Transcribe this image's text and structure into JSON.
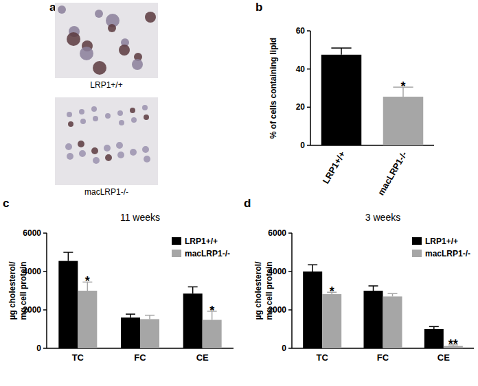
{
  "image_panel": {
    "panel_label": "a",
    "captions": [
      "LRP1+/+",
      "macLRP1-/-"
    ]
  },
  "chart_data": [
    {
      "type": "bar",
      "panel_label": "b",
      "y_label": [
        "% of cells containing lipid"
      ],
      "categories": [
        "LRP1+/+",
        "macLRP1-/-"
      ],
      "values": [
        47.5,
        25.5
      ],
      "errors": [
        3.5,
        5
      ],
      "significance": [
        null,
        "*"
      ],
      "colors": [
        "#000000",
        "#a6a6a6"
      ],
      "ylim": [
        0,
        60
      ],
      "yticks": [
        0,
        20,
        40,
        60
      ]
    },
    {
      "type": "bar",
      "panel_label": "c",
      "title": "11 weeks",
      "y_label": [
        "µg cholesterol/",
        "mg cell protein"
      ],
      "categories": [
        "TC",
        "FC",
        "CE"
      ],
      "series": [
        {
          "name": "LRP1+/+",
          "color": "#000000",
          "values": [
            4550,
            1600,
            2850
          ],
          "errors": [
            450,
            180,
            350
          ],
          "significance": [
            null,
            null,
            null
          ]
        },
        {
          "name": "macLRP1-/-",
          "color": "#a6a6a6",
          "values": [
            3000,
            1520,
            1480
          ],
          "errors": [
            450,
            200,
            450
          ],
          "significance": [
            "*",
            null,
            "*"
          ]
        }
      ],
      "ylim": [
        0,
        6000
      ],
      "yticks": [
        0,
        2000,
        4000,
        6000
      ],
      "legend": "upper right"
    },
    {
      "type": "bar",
      "panel_label": "d",
      "title": "3 weeks",
      "y_label": [
        "µg cholesterol/",
        "mg cell protein"
      ],
      "categories": [
        "TC",
        "FC",
        "CE"
      ],
      "series": [
        {
          "name": "LRP1+/+",
          "color": "#000000",
          "values": [
            4000,
            3000,
            1000
          ],
          "errors": [
            350,
            250,
            130
          ],
          "significance": [
            null,
            null,
            null
          ]
        },
        {
          "name": "macLRP1-/-",
          "color": "#a6a6a6",
          "values": [
            2820,
            2700,
            120
          ],
          "errors": [
            100,
            150,
            60
          ],
          "significance": [
            "*",
            null,
            "**"
          ]
        }
      ],
      "ylim": [
        0,
        6000
      ],
      "yticks": [
        0,
        2000,
        4000,
        6000
      ],
      "legend": "upper right"
    }
  ]
}
